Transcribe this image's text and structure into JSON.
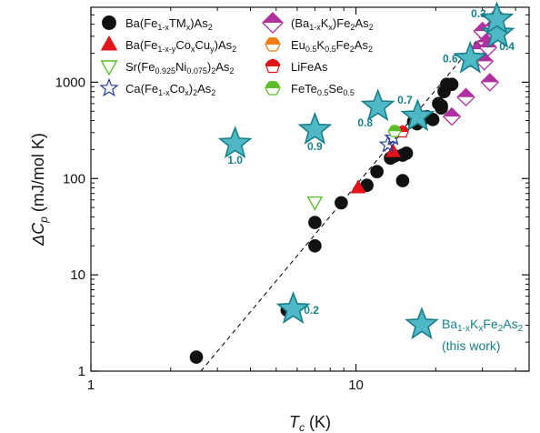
{
  "chart_data": {
    "type": "scatter",
    "xlabel": {
      "main": "T",
      "sub": "c",
      "tail": " (K)"
    },
    "ylabel": {
      "pre": "ΔC",
      "sub": "p",
      "tail": " (mJ/mol K)"
    },
    "x_scale": "log",
    "y_scale": "log",
    "xlim": [
      1,
      45
    ],
    "ylim": [
      1,
      6000
    ],
    "x_ticks": [
      {
        "v": 1,
        "label": "1"
      },
      {
        "v": 10,
        "label": "10"
      }
    ],
    "y_ticks": [
      {
        "v": 1,
        "label": "1"
      },
      {
        "v": 10,
        "label": "10"
      },
      {
        "v": 100,
        "label": "100"
      },
      {
        "v": 1000,
        "label": "1000"
      }
    ],
    "series": [
      {
        "name": [
          [
            "Ba(Fe",
            "n"
          ],
          [
            "1-x",
            "s"
          ],
          [
            "TM",
            "n"
          ],
          [
            "x",
            "s"
          ],
          [
            ")As",
            "n"
          ],
          [
            "2",
            "s"
          ]
        ],
        "marker": "circle",
        "color": "#111111",
        "fill": "#111111",
        "points": [
          [
            2.5,
            1.4
          ],
          [
            5.5,
            4.3
          ],
          [
            7,
            20
          ],
          [
            7,
            35
          ],
          [
            8.8,
            56
          ],
          [
            11,
            85
          ],
          [
            12,
            118
          ],
          [
            13.5,
            163
          ],
          [
            14,
            172
          ],
          [
            15,
            95
          ],
          [
            15,
            175
          ],
          [
            15.5,
            183
          ],
          [
            16.5,
            390
          ],
          [
            17,
            410
          ],
          [
            17,
            370
          ],
          [
            18,
            420
          ],
          [
            18.5,
            440
          ],
          [
            19.5,
            410
          ],
          [
            21,
            570
          ],
          [
            21.5,
            800
          ],
          [
            22,
            950
          ],
          [
            23,
            950
          ],
          [
            21,
            540
          ],
          [
            20.5,
            600
          ]
        ]
      },
      {
        "name": [
          [
            "Ba(Fe",
            "n"
          ],
          [
            "1-x-y",
            "s"
          ],
          [
            "Co",
            "n"
          ],
          [
            "x",
            "s"
          ],
          [
            "Cu",
            "n"
          ],
          [
            "y",
            "s"
          ],
          [
            ")As",
            "n"
          ],
          [
            "2",
            "s"
          ]
        ],
        "marker": "triangle",
        "color": "#e0141a",
        "fill": "#e0141a",
        "points": [
          [
            10.2,
            80
          ],
          [
            13.8,
            190
          ]
        ]
      },
      {
        "name": [
          [
            "Sr(Fe",
            "n"
          ],
          [
            "0.925",
            "s"
          ],
          [
            "Ni",
            "n"
          ],
          [
            "0.075",
            "s"
          ],
          [
            ")",
            "n"
          ],
          [
            "2",
            "s"
          ],
          [
            "As",
            "n"
          ],
          [
            "2",
            "s"
          ]
        ],
        "marker": "triangle-down",
        "color": "#5cbf2a",
        "fill": "none",
        "points": [
          [
            7,
            57
          ]
        ]
      },
      {
        "name": [
          [
            "Ca(Fe",
            "n"
          ],
          [
            "1-x",
            "s"
          ],
          [
            "Co",
            "n"
          ],
          [
            "x",
            "s"
          ],
          [
            ")",
            "n"
          ],
          [
            "2",
            "s"
          ],
          [
            "As",
            "n"
          ],
          [
            "2",
            "s"
          ]
        ],
        "marker": "star",
        "color": "#2a3c9e",
        "fill": "none",
        "points": [
          [
            13.2,
            225
          ],
          [
            13.8,
            265
          ]
        ]
      },
      {
        "name": [
          [
            "(Ba",
            "n"
          ],
          [
            "1-x",
            "s"
          ],
          [
            "K",
            "n"
          ],
          [
            "x",
            "s"
          ],
          [
            ")Fe",
            "n"
          ],
          [
            "2",
            "s"
          ],
          [
            "As",
            "n"
          ],
          [
            "2",
            "s"
          ]
        ],
        "marker": "diamond-half",
        "color": "#b0309e",
        "fill": "#b0309e",
        "points": [
          [
            23,
            440
          ],
          [
            26,
            700
          ],
          [
            29,
            2200
          ],
          [
            30,
            3400
          ],
          [
            30.5,
            1650
          ],
          [
            31,
            2600
          ],
          [
            31.5,
            2300
          ],
          [
            32,
            1000
          ],
          [
            33,
            3800
          ],
          [
            34,
            4800
          ]
        ]
      },
      {
        "name": [
          [
            "Eu",
            "n"
          ],
          [
            "0.5",
            "s"
          ],
          [
            "K",
            "n"
          ],
          [
            "0.5",
            "s"
          ],
          [
            "Fe",
            "n"
          ],
          [
            "2",
            "s"
          ],
          [
            "As",
            "n"
          ],
          [
            "2",
            "s"
          ]
        ],
        "marker": "hexagon-half",
        "color": "#ef7d12",
        "fill": "#ef7d12",
        "points": [
          [
            27.5,
            1650
          ]
        ]
      },
      {
        "name": [
          [
            "LiFeAs",
            "n"
          ]
        ],
        "marker": "pentagon-half",
        "color": "#e0141a",
        "fill": "#e0141a",
        "points": [
          [
            15,
            305
          ]
        ]
      },
      {
        "name": [
          [
            "FeTe",
            "n"
          ],
          [
            "0.5",
            "s"
          ],
          [
            "Se",
            "n"
          ],
          [
            "0.5",
            "s"
          ]
        ],
        "marker": "hexagon-half",
        "color": "#5cbf2a",
        "fill": "#5cbf2a",
        "points": [
          [
            14,
            310
          ]
        ]
      }
    ],
    "highlight": {
      "name": [
        [
          "Ba",
          "n"
        ],
        [
          "1-x",
          "s"
        ],
        [
          "K",
          "n"
        ],
        [
          "x",
          "s"
        ],
        [
          "Fe",
          "n"
        ],
        [
          "2",
          "s"
        ],
        [
          "As",
          "n"
        ],
        [
          "2",
          "s"
        ]
      ],
      "note": "(this work)",
      "marker": "star",
      "color": "#17808a",
      "fill": "#4fb8c4",
      "points": [
        {
          "x": 3.5,
          "y": 230,
          "label": "1.0"
        },
        {
          "x": 7,
          "y": 320,
          "label": "0.9"
        },
        {
          "x": 12.1,
          "y": 560,
          "label": "0.8"
        },
        {
          "x": 17.1,
          "y": 440,
          "label": "0.7"
        },
        {
          "x": 27,
          "y": 1750,
          "label": "0.6"
        },
        {
          "x": 34.3,
          "y": 3200,
          "label": "0.4"
        },
        {
          "x": 34,
          "y": 4500,
          "label": "0.3"
        },
        {
          "x": 5.8,
          "y": 4.4,
          "label": "0.2"
        }
      ]
    },
    "trend_line": {
      "style": "dashed",
      "from": [
        2.6,
        1
      ],
      "to": [
        34,
        4800
      ]
    },
    "grid": false
  }
}
